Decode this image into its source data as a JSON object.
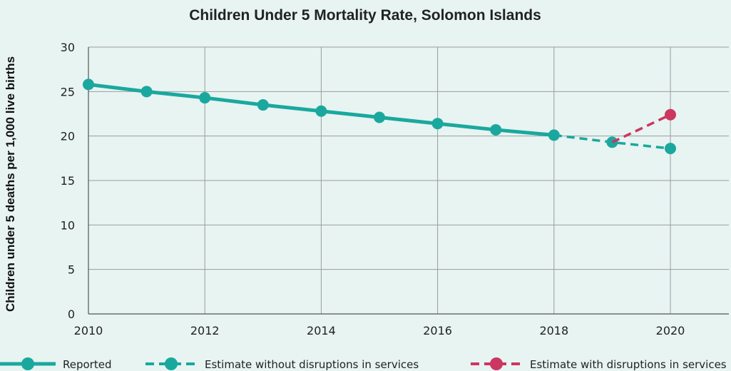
{
  "chart_data": {
    "type": "line",
    "title": "Children Under 5 Mortality Rate, Solomon Islands",
    "xlabel": "",
    "ylabel": "Children under 5 deaths per 1,000 live births",
    "xlim": [
      2010,
      2021
    ],
    "ylim": [
      0,
      30
    ],
    "x_ticks": [
      2010,
      2012,
      2014,
      2016,
      2018,
      2020
    ],
    "y_ticks": [
      0,
      5,
      10,
      15,
      20,
      25,
      30
    ],
    "x_tick_labels": [
      "2010",
      "2012",
      "2014",
      "2016",
      "2018",
      "2020"
    ],
    "y_tick_labels": [
      "0",
      "5",
      "10",
      "15",
      "20",
      "25",
      "30"
    ],
    "grid": true,
    "legend_position": "bottom",
    "series": [
      {
        "name": "Reported",
        "color": "#1aa89e",
        "dashed": false,
        "x": [
          2010,
          2011,
          2012,
          2013,
          2014,
          2015,
          2016,
          2017,
          2018
        ],
        "y": [
          25.8,
          25.0,
          24.3,
          23.5,
          22.8,
          22.1,
          21.4,
          20.7,
          20.1
        ]
      },
      {
        "name": "Estimate without disruptions in services",
        "color": "#1aa89e",
        "dashed": true,
        "x": [
          2018,
          2019,
          2020
        ],
        "y": [
          20.1,
          19.3,
          18.6
        ]
      },
      {
        "name": "Estimate with disruptions in services",
        "color": "#cc3660",
        "dashed": true,
        "x": [
          2019,
          2020
        ],
        "y": [
          19.3,
          22.4
        ]
      }
    ]
  }
}
